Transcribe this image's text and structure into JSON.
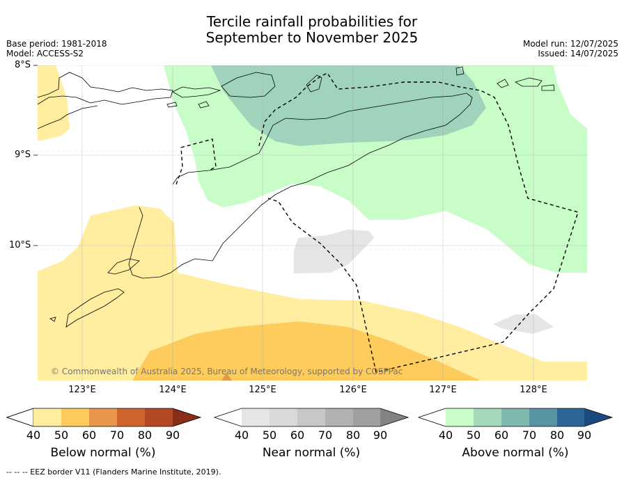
{
  "header": {
    "title_line1": "Tercile rainfall probabilities for",
    "title_line2": "September to November 2025",
    "base_period": "Base period: 1981-2018",
    "model": "Model: ACCESS-S2",
    "model_run": "Model run: 12/07/2025",
    "issued": "Issued: 14/07/2025"
  },
  "map": {
    "lat_labels": [
      "8°S",
      "9°S",
      "10°S"
    ],
    "lon_labels": [
      "123°E",
      "124°E",
      "125°E",
      "126°E",
      "127°E",
      "128°E"
    ],
    "copyright": "© Commonwealth of Australia 2025, Bureau of Meteorology, supported by COSPPac"
  },
  "colorbars": [
    {
      "title": "Below normal (%)",
      "ticks": [
        "40",
        "50",
        "60",
        "70",
        "80",
        "90"
      ],
      "colors": [
        "#ffffff",
        "#ffeda0",
        "#fecc5c",
        "#e6954a",
        "#d0642f",
        "#b34a24",
        "#8a2d16"
      ]
    },
    {
      "title": "Near normal (%)",
      "ticks": [
        "40",
        "50",
        "60",
        "70",
        "80",
        "90"
      ],
      "colors": [
        "#ffffff",
        "#e5e5e5",
        "#d9d9d9",
        "#c7c7c7",
        "#b2b2b2",
        "#a0a0a0",
        "#838383"
      ]
    },
    {
      "title": "Above normal (%)",
      "ticks": [
        "40",
        "50",
        "60",
        "70",
        "80",
        "90"
      ],
      "colors": [
        "#ffffff",
        "#c8fdc8",
        "#a3d8bb",
        "#80b7ac",
        "#5893a3",
        "#2e6598",
        "#1b4a7e"
      ]
    }
  ],
  "footer": {
    "legend_text": "--  --  -- EEZ border V11 (Flanders Marine Institute, 2019)."
  }
}
